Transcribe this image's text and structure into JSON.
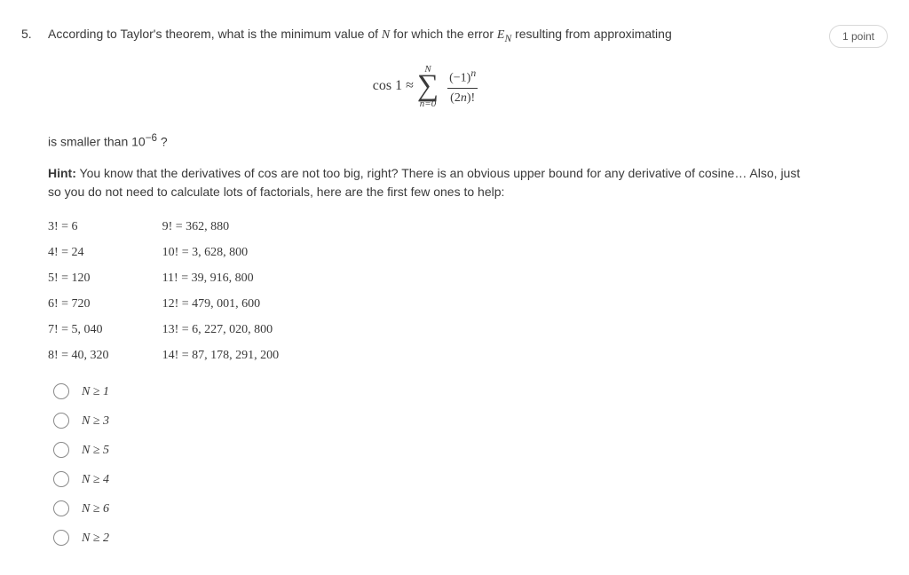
{
  "question": {
    "number": "5.",
    "stem_html": "According to Taylor's theorem, what is the minimum value of <span class='math-var'>N</span> for which the error <span class='math-var'>E<sub>N</sub></span> resulting from approximating",
    "formula": {
      "lhs": "cos 1 ≈",
      "sum_upper": "N",
      "sum_lower": "n=0",
      "numerator": "(−1)<sup style='font-style:italic'>n</sup>",
      "denominator": "(2<span style='font-style:italic'>n</span>)!"
    },
    "tail_html": "is smaller than 10<sup>−6</sup> ?",
    "hint_label": "Hint:",
    "hint_text": " You know that the derivatives of cos are not too big, right? There is an obvious upper bound for any derivative of cosine… Also, just so you do not need to calculate lots of factorials, here are the first few ones to help:",
    "factorials_left": [
      "3!  = 6",
      "4!  = 24",
      "5!  = 120",
      "6!  = 720",
      "7!  = 5, 040",
      "8!  = 40, 320"
    ],
    "factorials_right": [
      "9!  = 362, 880",
      "10!  = 3, 628, 800",
      "11!  = 39, 916, 800",
      "12!  = 479, 001, 600",
      "13!  = 6, 227, 020, 800",
      "14!  = 87, 178, 291, 200"
    ],
    "options": [
      "N ≥ 1",
      "N ≥ 3",
      "N ≥ 5",
      "N ≥ 4",
      "N ≥ 6",
      "N ≥ 2"
    ]
  },
  "points_label": "1 point"
}
